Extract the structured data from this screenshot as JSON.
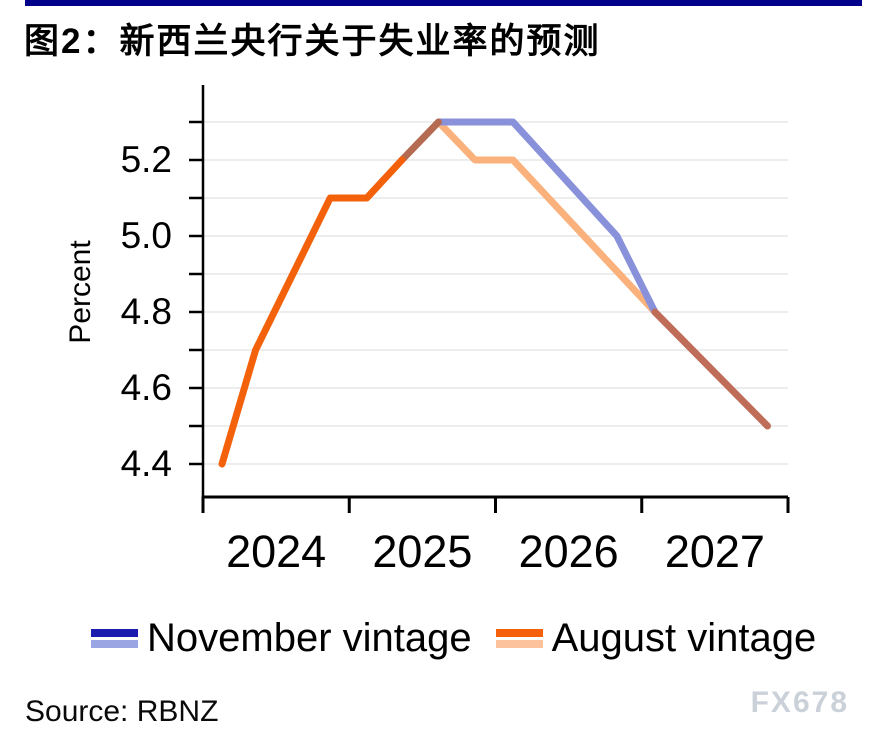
{
  "header": {
    "title": "图2：新西兰央行关于失业率的预测"
  },
  "footer": {
    "source": "Source: RBNZ",
    "watermark": "FX678"
  },
  "colors": {
    "accent_bar": "#00008B",
    "axis": "#000000",
    "gridline": "#EDEDED",
    "watermark": "#CBD1D9"
  },
  "legend": {
    "items": [
      {
        "label": "November vintage",
        "swatch_colors": [
          "#1B1BAE",
          "#9AA5E3"
        ]
      },
      {
        "label": "August vintage",
        "swatch_colors": [
          "#F4610A",
          "#FBC29B"
        ]
      }
    ]
  },
  "chart_data": {
    "type": "line",
    "title": "图2：新西兰央行关于失业率的预测",
    "xlabel": "",
    "ylabel": "Percent",
    "xlim": [
      2024,
      2028
    ],
    "ylim": [
      4.3,
      5.39
    ],
    "grid": true,
    "legend_position": "bottom",
    "x_axis": {
      "ticks": [
        2024,
        2025,
        2026,
        2027,
        2028
      ],
      "labels": [
        {
          "text": "2024",
          "center": 2024.5
        },
        {
          "text": "2025",
          "center": 2025.5
        },
        {
          "text": "2026",
          "center": 2026.5
        },
        {
          "text": "2027",
          "center": 2027.5
        }
      ]
    },
    "y_axis": {
      "label": "Percent",
      "ticks": [
        {
          "v": 4.4,
          "label": "4.4"
        },
        {
          "v": 4.5,
          "label": ""
        },
        {
          "v": 4.6,
          "label": "4.6"
        },
        {
          "v": 4.7,
          "label": ""
        },
        {
          "v": 4.8,
          "label": "4.8"
        },
        {
          "v": 4.9,
          "label": ""
        },
        {
          "v": 5.0,
          "label": "5.0"
        },
        {
          "v": 5.1,
          "label": ""
        },
        {
          "v": 5.2,
          "label": "5.2"
        },
        {
          "v": 5.3,
          "label": ""
        }
      ]
    },
    "series": [
      {
        "name": "august-vintage-forecast",
        "legend": "August vintage",
        "color": "#FAB17C",
        "points": [
          [
            2025.61,
            5.3
          ],
          [
            2025.86,
            5.2
          ],
          [
            2026.12,
            5.2
          ],
          [
            2027.09,
            4.8
          ]
        ]
      },
      {
        "name": "november-vintage-forecast",
        "legend": "November vintage",
        "color": "#8991DB",
        "points": [
          [
            2025.61,
            5.3
          ],
          [
            2026.12,
            5.3
          ],
          [
            2026.83,
            5.0
          ],
          [
            2027.09,
            4.8
          ]
        ]
      },
      {
        "name": "overlap-rise-both-vintages",
        "legend": "",
        "color": "#B56B51",
        "points": [
          [
            2025.36,
            5.2
          ],
          [
            2025.61,
            5.3
          ]
        ]
      },
      {
        "name": "overlap-tail-both-vintages",
        "legend": "",
        "color": "#BF6C59",
        "points": [
          [
            2027.09,
            4.8
          ],
          [
            2027.86,
            4.5
          ]
        ]
      },
      {
        "name": "shared-history-both-vintages",
        "legend": "",
        "color": "#F3610B",
        "points": [
          [
            2024.13,
            4.4
          ],
          [
            2024.36,
            4.7
          ],
          [
            2024.87,
            5.1
          ],
          [
            2025.12,
            5.1
          ],
          [
            2025.36,
            5.2
          ]
        ]
      }
    ]
  }
}
